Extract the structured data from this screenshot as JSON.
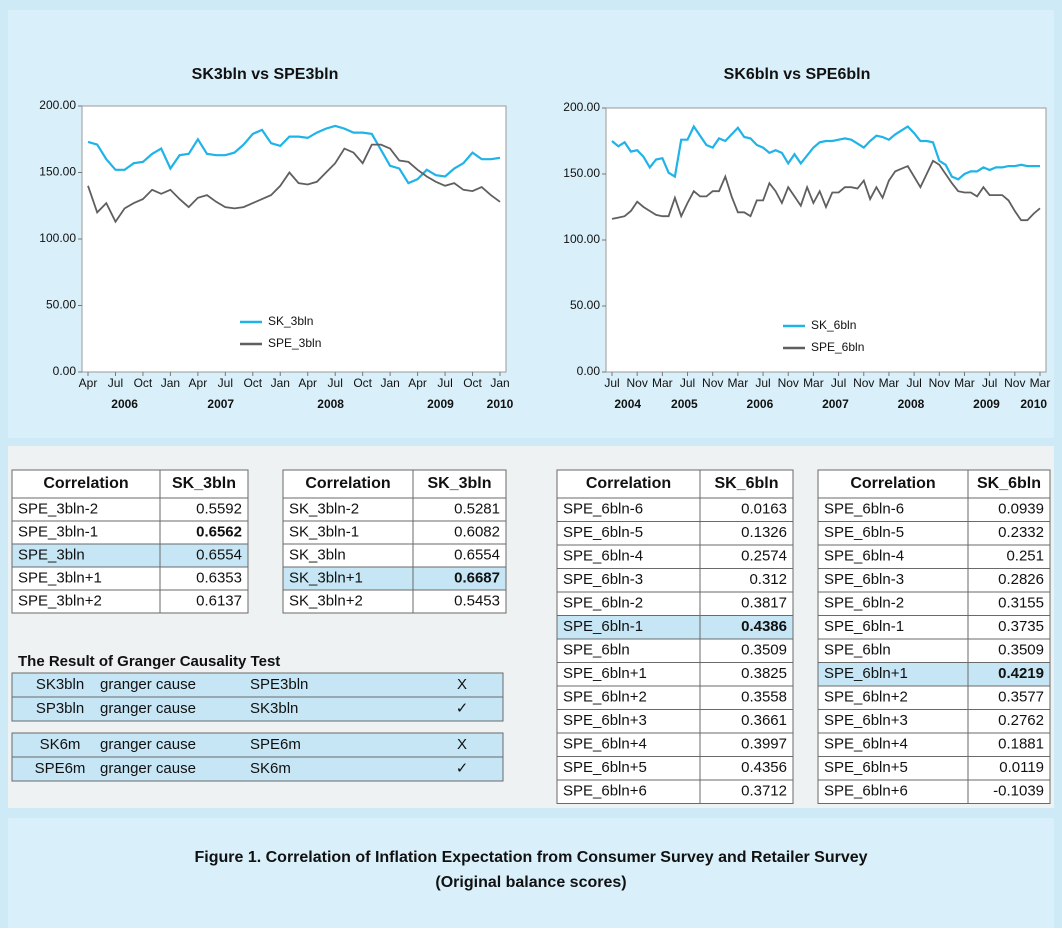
{
  "chart_data": [
    {
      "type": "line",
      "title": "SK3bln vs SPE3bln",
      "categories": [
        "Apr",
        null,
        null,
        "Jul",
        null,
        null,
        "Oct",
        null,
        null,
        "Jan",
        null,
        null,
        "Apr",
        null,
        null,
        "Jul",
        null,
        null,
        "Oct",
        null,
        null,
        "Jan",
        null,
        null,
        "Apr",
        null,
        null,
        "Jul",
        null,
        null,
        "Oct",
        null,
        null,
        "Jan",
        null,
        null,
        "Apr",
        null,
        null,
        "Jul",
        null,
        null,
        "Oct",
        null,
        null,
        "Jan"
      ],
      "years": [
        "2006",
        "2007",
        "2008",
        "2009",
        "2010"
      ],
      "series": [
        {
          "name": "SK_3bln",
          "color": "#1fb3e8",
          "values": [
            173,
            171,
            160,
            152,
            152,
            157,
            158,
            164,
            168,
            153,
            163,
            164,
            175,
            164,
            163,
            163,
            165,
            171,
            179,
            182,
            172,
            170,
            177,
            177,
            176,
            180,
            183,
            185,
            183,
            180,
            180,
            179,
            167,
            155,
            153,
            142,
            145,
            152,
            148,
            147,
            153,
            157,
            165,
            160,
            160,
            161
          ]
        },
        {
          "name": "SPE_3bln",
          "color": "#5f5f5f",
          "values": [
            140,
            120,
            127,
            113,
            123,
            127,
            130,
            137,
            134,
            137,
            130,
            124,
            131,
            133,
            128,
            124,
            123,
            124,
            127,
            130,
            133,
            140,
            150,
            142,
            141,
            143,
            150,
            157,
            168,
            165,
            157,
            171,
            171,
            168,
            159,
            158,
            152,
            147,
            143,
            140,
            142,
            137,
            136,
            139,
            133,
            128
          ]
        }
      ],
      "ylim": [
        0,
        200
      ],
      "yticks": [
        {
          "value": 0,
          "label": "0.00"
        },
        {
          "value": 50,
          "label": "50.00"
        },
        {
          "value": 100,
          "label": "100.00"
        },
        {
          "value": 150,
          "label": "150.00"
        },
        {
          "value": 200,
          "label": "200.00"
        }
      ],
      "grid": false
    },
    {
      "type": "line",
      "title": "SK6bln vs SPE6bln",
      "categories": [
        "Jul",
        null,
        null,
        null,
        "Nov",
        null,
        null,
        null,
        "Mar",
        null,
        null,
        null,
        "Jul",
        null,
        null,
        null,
        "Nov",
        null,
        null,
        null,
        "Mar",
        null,
        null,
        null,
        "Jul",
        null,
        null,
        null,
        "Nov",
        null,
        null,
        null,
        "Mar",
        null,
        null,
        null,
        "Jul",
        null,
        null,
        null,
        "Nov",
        null,
        null,
        null,
        "Mar",
        null,
        null,
        null,
        "Jul",
        null,
        null,
        null,
        "Nov",
        null,
        null,
        null,
        "Mar",
        null,
        null,
        null,
        "Jul",
        null,
        null,
        null,
        "Nov",
        null,
        null,
        null,
        "Mar"
      ],
      "years": [
        "2004",
        "2005",
        "2006",
        "2007",
        "2008",
        "2009",
        "2010"
      ],
      "series": [
        {
          "name": "SK_6bln",
          "color": "#1fb3e8",
          "values": [
            175,
            171,
            174,
            167,
            168,
            163,
            155,
            161,
            162,
            151,
            148,
            176,
            176,
            186,
            179,
            172,
            170,
            177,
            175,
            180,
            185,
            178,
            177,
            172,
            170,
            166,
            168,
            166,
            158,
            165,
            158,
            164,
            170,
            174,
            175,
            175,
            176,
            177,
            176,
            173,
            170,
            175,
            179,
            178,
            176,
            180,
            183,
            186,
            181,
            175,
            175,
            174,
            160,
            157,
            148,
            146,
            150,
            152,
            152,
            155,
            153,
            155,
            155,
            156,
            156,
            157,
            156,
            156,
            156
          ]
        },
        {
          "name": "SPE_6bln",
          "color": "#5f5f5f",
          "values": [
            116,
            117,
            118,
            122,
            129,
            125,
            122,
            119,
            118,
            118,
            132,
            118,
            128,
            137,
            133,
            133,
            137,
            137,
            148,
            133,
            121,
            121,
            118,
            130,
            130,
            143,
            137,
            128,
            140,
            133,
            126,
            140,
            128,
            137,
            125,
            136,
            136,
            140,
            140,
            139,
            145,
            131,
            140,
            132,
            145,
            152,
            154,
            156,
            148,
            140,
            150,
            160,
            157,
            150,
            143,
            137,
            136,
            136,
            133,
            140,
            134,
            134,
            134,
            130,
            122,
            115,
            115,
            120,
            124
          ]
        }
      ],
      "ylim": [
        0,
        200
      ],
      "yticks": [
        {
          "value": 0,
          "label": "0.00"
        },
        {
          "value": 50,
          "label": "50.00"
        },
        {
          "value": 100,
          "label": "100.00"
        },
        {
          "value": 150,
          "label": "150.00"
        },
        {
          "value": 200,
          "label": "200.00"
        }
      ],
      "grid": false
    }
  ],
  "tables": [
    {
      "header": [
        "Correlation",
        "SK_3bln"
      ],
      "bold_row": 1,
      "highlight_row": 2,
      "rows": [
        [
          "SPE_3bln-2",
          "0.5592"
        ],
        [
          "SPE_3bln-1",
          "0.6562"
        ],
        [
          "SPE_3bln",
          "0.6554"
        ],
        [
          "SPE_3bln+1",
          "0.6353"
        ],
        [
          "SPE_3bln+2",
          "0.6137"
        ]
      ]
    },
    {
      "header": [
        "Correlation",
        "SK_3bln"
      ],
      "bold_row": 3,
      "highlight_row": 3,
      "rows": [
        [
          "SK_3bln-2",
          "0.5281"
        ],
        [
          "SK_3bln-1",
          "0.6082"
        ],
        [
          "SK_3bln",
          "0.6554"
        ],
        [
          "SK_3bln+1",
          "0.6687"
        ],
        [
          "SK_3bln+2",
          "0.5453"
        ]
      ]
    },
    {
      "header": [
        "Correlation",
        "SK_6bln"
      ],
      "bold_row": 5,
      "highlight_row": 5,
      "rows": [
        [
          "SPE_6bln-6",
          "0.0163"
        ],
        [
          "SPE_6bln-5",
          "0.1326"
        ],
        [
          "SPE_6bln-4",
          "0.2574"
        ],
        [
          "SPE_6bln-3",
          "0.312"
        ],
        [
          "SPE_6bln-2",
          "0.3817"
        ],
        [
          "SPE_6bln-1",
          "0.4386"
        ],
        [
          "SPE_6bln",
          "0.3509"
        ],
        [
          "SPE_6bln+1",
          "0.3825"
        ],
        [
          "SPE_6bln+2",
          "0.3558"
        ],
        [
          "SPE_6bln+3",
          "0.3661"
        ],
        [
          "SPE_6bln+4",
          "0.3997"
        ],
        [
          "SPE_6bln+5",
          "0.4356"
        ],
        [
          "SPE_6bln+6",
          "0.3712"
        ]
      ]
    },
    {
      "header": [
        "Correlation",
        "SK_6bln"
      ],
      "bold_row": 7,
      "highlight_row": 7,
      "rows": [
        [
          "SPE_6bln-6",
          "0.0939"
        ],
        [
          "SPE_6bln-5",
          "0.2332"
        ],
        [
          "SPE_6bln-4",
          "0.251"
        ],
        [
          "SPE_6bln-3",
          "0.2826"
        ],
        [
          "SPE_6bln-2",
          "0.3155"
        ],
        [
          "SPE_6bln-1",
          "0.3735"
        ],
        [
          "SPE_6bln",
          "0.3509"
        ],
        [
          "SPE_6bln+1",
          "0.4219"
        ],
        [
          "SPE_6bln+2",
          "0.3577"
        ],
        [
          "SPE_6bln+3",
          "0.2762"
        ],
        [
          "SPE_6bln+4",
          "0.1881"
        ],
        [
          "SPE_6bln+5",
          "0.0119"
        ],
        [
          "SPE_6bln+6",
          "-0.1039"
        ]
      ]
    }
  ],
  "granger": {
    "title": "The Result of Granger Causality Test",
    "rows": [
      [
        "SK3bln",
        "granger cause",
        "SPE3bln",
        "X"
      ],
      [
        "SP3bln",
        "granger cause",
        "SK3bln",
        "✓"
      ],
      [
        "SK6m",
        "granger cause",
        "SPE6m",
        "X"
      ],
      [
        "SPE6m",
        "granger cause",
        "SK6m",
        "✓"
      ]
    ]
  },
  "caption": [
    "Figure 1. Correlation of Inflation Expectation from Consumer Survey and Retailer Survey",
    "(Original balance scores)"
  ]
}
